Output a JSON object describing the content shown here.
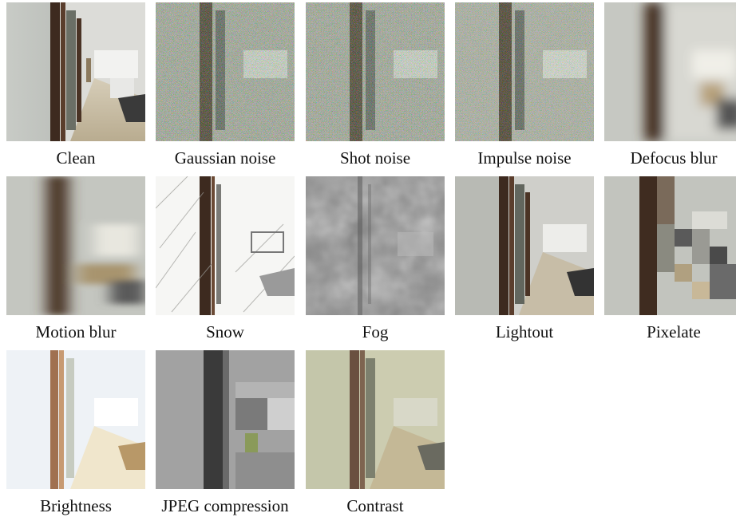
{
  "figure": {
    "items": [
      {
        "caption": "Clean",
        "effect": "clean"
      },
      {
        "caption": "Gaussian noise",
        "effect": "gaussian-noise"
      },
      {
        "caption": "Shot noise",
        "effect": "shot-noise"
      },
      {
        "caption": "Impulse noise",
        "effect": "impulse-noise"
      },
      {
        "caption": "Defocus blur",
        "effect": "defocus-blur"
      },
      {
        "caption": "Motion blur",
        "effect": "motion-blur"
      },
      {
        "caption": "Snow",
        "effect": "snow"
      },
      {
        "caption": "Fog",
        "effect": "fog"
      },
      {
        "caption": "Lightout",
        "effect": "lightout"
      },
      {
        "caption": "Pixelate",
        "effect": "pixelate"
      },
      {
        "caption": "Brightness",
        "effect": "brightness"
      },
      {
        "caption": "JPEG compression",
        "effect": "jpeg-compression"
      },
      {
        "caption": "Contrast",
        "effect": "contrast"
      }
    ]
  }
}
